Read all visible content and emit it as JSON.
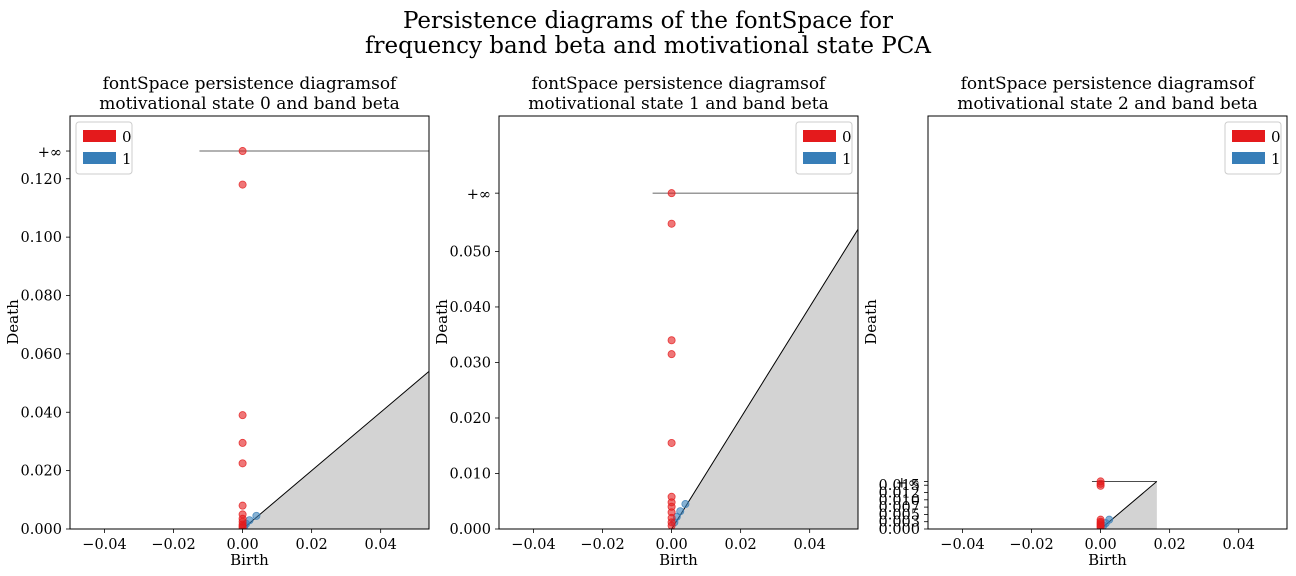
{
  "suptitle_line1": "Persistence diagrams of the fontSpace for",
  "suptitle_line2": "frequency band beta and motivational state PCA",
  "colors": {
    "h0": "#e41a1c",
    "h1": "#377eb8",
    "diagonal_fill": "#d3d3d3"
  },
  "chart_data": [
    {
      "type": "scatter",
      "title_line1": "fontSpace persistence diagramsof",
      "title_line2": "motivational state 0 and band beta",
      "xlabel": "Birth",
      "ylabel": "Death",
      "xlim": [
        -0.05,
        0.054
      ],
      "ylim": [
        0,
        0.1415
      ],
      "xticks": [
        -0.04,
        -0.02,
        0.0,
        0.02,
        0.04
      ],
      "xtick_labels": [
        "−0.04",
        "−0.02",
        "0.00",
        "0.02",
        "0.04"
      ],
      "yticks": [
        0,
        0.02,
        0.04,
        0.06,
        0.08,
        0.1,
        0.12
      ],
      "ytick_labels": [
        "0.000",
        "0.020",
        "0.040",
        "0.060",
        "0.080",
        "0.100",
        "0.120"
      ],
      "infinity_value": 0.1295,
      "infinity_label": "+∞",
      "infinity_line_start": -0.0125,
      "legend_position": "upper left",
      "legend": [
        "0",
        "1"
      ],
      "series": [
        {
          "name": "0",
          "points": [
            [
              0,
              0.1295
            ],
            [
              0,
              0.118
            ],
            [
              0,
              0.039
            ],
            [
              0,
              0.0295
            ],
            [
              0,
              0.0225
            ],
            [
              0,
              0.008
            ],
            [
              0,
              0.005
            ],
            [
              0,
              0.0035
            ],
            [
              0,
              0.0025
            ],
            [
              0,
              0.0015
            ],
            [
              0,
              0.001
            ],
            [
              0,
              0.0005
            ]
          ]
        },
        {
          "name": "1",
          "points": [
            [
              0.004,
              0.0045
            ],
            [
              0.002,
              0.003
            ],
            [
              0.001,
              0.0018
            ],
            [
              0.0005,
              0.001
            ]
          ]
        }
      ]
    },
    {
      "type": "scatter",
      "title_line1": "fontSpace persistence diagramsof",
      "title_line2": "motivational state 1 and band beta",
      "xlabel": "Birth",
      "ylabel": "Death",
      "xlim": [
        -0.05,
        0.054
      ],
      "ylim": [
        0,
        0.1415
      ],
      "xticks": [
        -0.04,
        -0.02,
        0.0,
        0.02,
        0.04
      ],
      "xtick_labels": [
        "−0.04",
        "−0.02",
        "0.00",
        "0.02",
        "0.04"
      ],
      "yticks": [
        0,
        0.01,
        0.02,
        0.03,
        0.04,
        0.05
      ],
      "ytick_labels": [
        "0.000",
        "0.010",
        "0.020",
        "0.030",
        "0.040",
        "0.050"
      ],
      "infinity_value": 0.0605,
      "infinity_label": "+∞",
      "infinity_line_start": -0.0055,
      "legend_position": "upper right",
      "legend": [
        "0",
        "1"
      ],
      "series": [
        {
          "name": "0",
          "points": [
            [
              0,
              0.0605
            ],
            [
              0,
              0.055
            ],
            [
              0,
              0.034
            ],
            [
              0,
              0.0315
            ],
            [
              0,
              0.0155
            ],
            [
              0,
              0.0058
            ],
            [
              0,
              0.0048
            ],
            [
              0,
              0.004
            ],
            [
              0,
              0.003
            ],
            [
              0,
              0.002
            ],
            [
              0,
              0.0012
            ],
            [
              0,
              0.0006
            ]
          ]
        },
        {
          "name": "1",
          "points": [
            [
              0.004,
              0.0045
            ],
            [
              0.0025,
              0.0032
            ],
            [
              0.0015,
              0.0022
            ],
            [
              0.0008,
              0.0012
            ]
          ]
        }
      ]
    },
    {
      "type": "scatter",
      "title_line1": "fontSpace persistence diagramsof",
      "title_line2": "motivational state 2 and band beta",
      "xlabel": "Birth",
      "ylabel": "Death",
      "xlim": [
        -0.05,
        0.054
      ],
      "ylim": [
        0,
        0.1415
      ],
      "xticks": [
        -0.04,
        -0.02,
        0.0,
        0.02,
        0.04
      ],
      "xtick_labels": [
        "−0.04",
        "−0.02",
        "0.00",
        "0.02",
        "0.04"
      ],
      "yticks": [
        0,
        0.0025,
        0.005,
        0.0075,
        0.01,
        0.0125,
        0.015
      ],
      "ytick_labels": [
        "0.000",
        "0.003",
        "0.005",
        "0.007",
        "0.010",
        "0.012",
        "0.015"
      ],
      "infinity_value": 0.0163,
      "infinity_label": "+∞",
      "infinity_line_start": -0.0025,
      "infinity_line_end": 0.0163,
      "diagonal_end": 0.0163,
      "legend_position": "upper right",
      "legend": [
        "0",
        "1"
      ],
      "series": [
        {
          "name": "0",
          "points": [
            [
              0,
              0.0163
            ],
            [
              0,
              0.0155
            ],
            [
              0,
              0.0148
            ],
            [
              0,
              0.0032
            ],
            [
              0,
              0.0025
            ],
            [
              0,
              0.002
            ],
            [
              0,
              0.0015
            ],
            [
              0,
              0.001
            ],
            [
              0,
              0.0006
            ]
          ]
        },
        {
          "name": "1",
          "points": [
            [
              0.0025,
              0.0032
            ],
            [
              0.0015,
              0.002
            ],
            [
              0.0008,
              0.0012
            ]
          ]
        }
      ]
    }
  ]
}
